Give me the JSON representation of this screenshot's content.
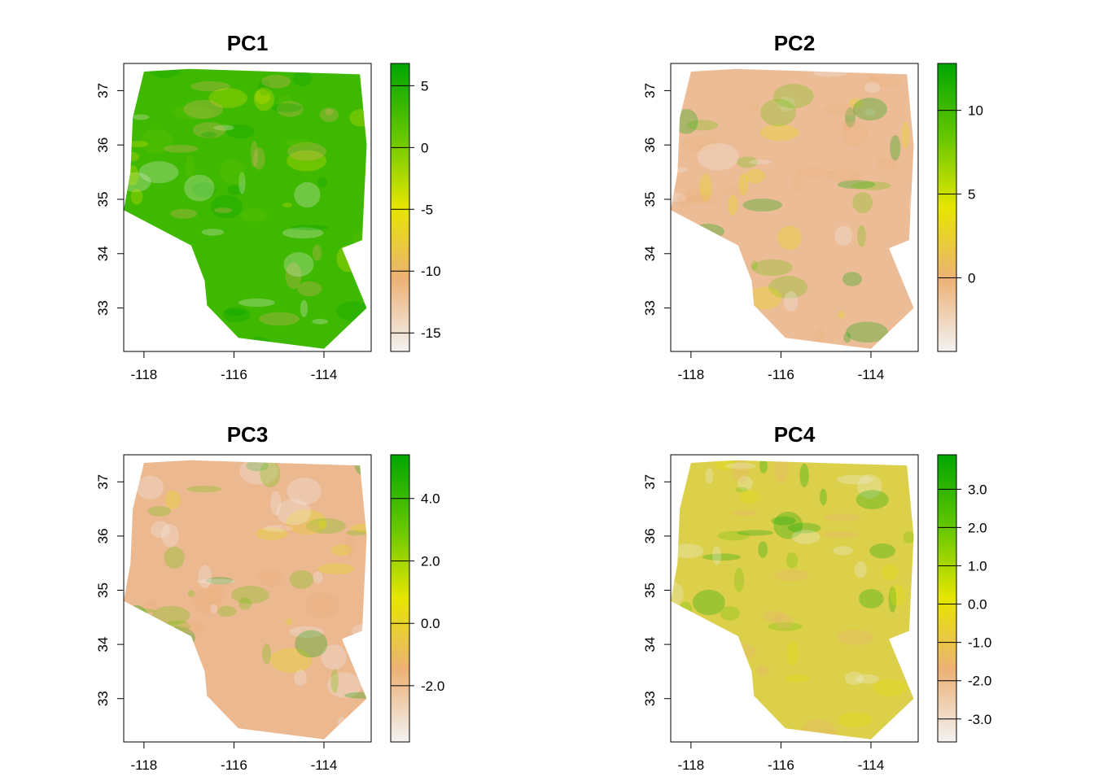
{
  "figure": {
    "layout": "2x2",
    "background": "#ffffff"
  },
  "chart_data": [
    {
      "type": "heatmap",
      "title": "PC1",
      "xlabel": "",
      "ylabel": "",
      "xlim": [
        -118.45,
        -112.95
      ],
      "ylim": [
        32.2,
        37.5
      ],
      "x_ticks": [
        -118,
        -116,
        -114
      ],
      "x_tick_labels": [
        "-118",
        "-116",
        "-114"
      ],
      "y_ticks": [
        33,
        34,
        35,
        36,
        37
      ],
      "y_tick_labels": [
        "33",
        "34",
        "35",
        "36",
        "37"
      ],
      "colorbar": {
        "range": [
          -16.5,
          6.8
        ],
        "ticks": [
          5,
          0,
          -5,
          -10,
          -15
        ],
        "tick_labels": [
          "5",
          "0",
          "-5",
          "-10",
          "-15"
        ],
        "palette": [
          "#F2F2F2",
          "#ECB176",
          "#E6E600",
          "#63C600",
          "#00A600"
        ]
      },
      "dominant_color": "#3fb800"
    },
    {
      "type": "heatmap",
      "title": "PC2",
      "xlabel": "",
      "ylabel": "",
      "xlim": [
        -118.45,
        -112.95
      ],
      "ylim": [
        32.2,
        37.5
      ],
      "x_ticks": [
        -118,
        -116,
        -114
      ],
      "x_tick_labels": [
        "-118",
        "-116",
        "-114"
      ],
      "y_ticks": [
        33,
        34,
        35,
        36,
        37
      ],
      "y_tick_labels": [
        "33",
        "34",
        "35",
        "36",
        "37"
      ],
      "colorbar": {
        "range": [
          -4.4,
          12.8
        ],
        "ticks": [
          10,
          5,
          0
        ],
        "tick_labels": [
          "10",
          "5",
          "0"
        ],
        "palette": [
          "#F2F2F2",
          "#ECB176",
          "#E6E600",
          "#63C600",
          "#00A600"
        ]
      },
      "dominant_color": "#ecbc96"
    },
    {
      "type": "heatmap",
      "title": "PC3",
      "xlabel": "",
      "ylabel": "",
      "xlim": [
        -118.45,
        -112.95
      ],
      "ylim": [
        32.2,
        37.5
      ],
      "x_ticks": [
        -118,
        -116,
        -114
      ],
      "x_tick_labels": [
        "-118",
        "-116",
        "-114"
      ],
      "y_ticks": [
        33,
        34,
        35,
        36,
        37
      ],
      "y_tick_labels": [
        "33",
        "34",
        "35",
        "36",
        "37"
      ],
      "colorbar": {
        "range": [
          -3.8,
          5.4
        ],
        "ticks": [
          4.0,
          2.0,
          0.0,
          -2.0
        ],
        "tick_labels": [
          "4.0",
          "2.0",
          "0.0",
          "-2.0"
        ],
        "palette": [
          "#F2F2F2",
          "#ECB176",
          "#E6E600",
          "#63C600",
          "#00A600"
        ]
      },
      "dominant_color": "#ecb890"
    },
    {
      "type": "heatmap",
      "title": "PC4",
      "xlabel": "",
      "ylabel": "",
      "xlim": [
        -118.45,
        -112.95
      ],
      "ylim": [
        32.2,
        37.5
      ],
      "x_ticks": [
        -118,
        -116,
        -114
      ],
      "x_tick_labels": [
        "-118",
        "-116",
        "-114"
      ],
      "y_ticks": [
        33,
        34,
        35,
        36,
        37
      ],
      "y_tick_labels": [
        "33",
        "34",
        "35",
        "36",
        "37"
      ],
      "colorbar": {
        "range": [
          -3.6,
          3.9
        ],
        "ticks": [
          3.0,
          2.0,
          1.0,
          0.0,
          -1.0,
          -2.0,
          -3.0
        ],
        "tick_labels": [
          "3.0",
          "2.0",
          "1.0",
          "0.0",
          "-1.0",
          "-2.0",
          "-3.0"
        ],
        "palette": [
          "#F2F2F2",
          "#ECB176",
          "#E6E600",
          "#63C600",
          "#00A600"
        ]
      },
      "dominant_color": "#dccf4a"
    }
  ]
}
